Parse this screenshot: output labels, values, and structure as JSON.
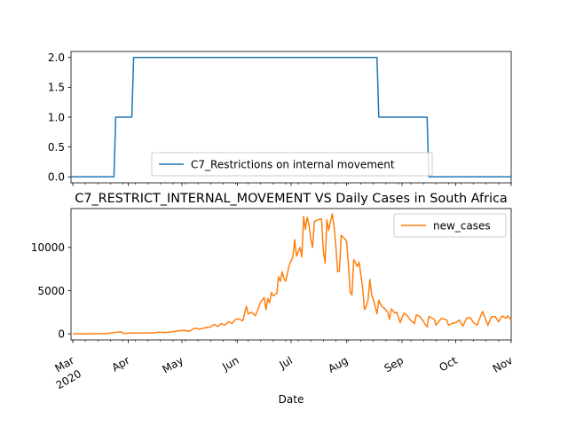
{
  "chart_data": [
    {
      "type": "line",
      "title": "",
      "xlabel": "",
      "ylabel": "",
      "ylim": [
        -0.1,
        2.1
      ],
      "yticks": [
        "0.0",
        "0.5",
        "1.0",
        "1.5",
        "2.0"
      ],
      "ytick_values": [
        0,
        0.5,
        1.0,
        1.5,
        2.0
      ],
      "grid": false,
      "legend_position": "lower-center",
      "series": [
        {
          "name": "C7_Restrictions on internal movement",
          "color": "#1f77b4",
          "points": [
            [
              "2020-02-29",
              0
            ],
            [
              "2020-03-24",
              0
            ],
            [
              "2020-03-25",
              1
            ],
            [
              "2020-04-03",
              1
            ],
            [
              "2020-04-04",
              2
            ],
            [
              "2020-08-18",
              2
            ],
            [
              "2020-08-19",
              1
            ],
            [
              "2020-09-15",
              1
            ],
            [
              "2020-09-16",
              0
            ],
            [
              "2020-11-01",
              0
            ]
          ]
        }
      ]
    },
    {
      "type": "line",
      "title": "C7_RESTRICT_INTERNAL_MOVEMENT VS Daily Cases in South Africa",
      "xlabel": "Date",
      "ylabel": "",
      "ylim": [
        -700,
        14500
      ],
      "yticks": [
        "0",
        "5000",
        "10000"
      ],
      "ytick_values": [
        0,
        5000,
        10000
      ],
      "xlim": [
        "2020-02-29",
        "2020-11-01"
      ],
      "xticks": [
        {
          "date": "2020-03-01",
          "label": "Mar",
          "sublabel": "2020"
        },
        {
          "date": "2020-04-01",
          "label": "Apr"
        },
        {
          "date": "2020-05-01",
          "label": "May"
        },
        {
          "date": "2020-06-01",
          "label": "Jun"
        },
        {
          "date": "2020-07-01",
          "label": "Jul"
        },
        {
          "date": "2020-08-01",
          "label": "Aug"
        },
        {
          "date": "2020-09-01",
          "label": "Sep"
        },
        {
          "date": "2020-10-01",
          "label": "Oct"
        },
        {
          "date": "2020-11-01",
          "label": "Nov"
        }
      ],
      "grid": false,
      "legend_position": "top-right",
      "series": [
        {
          "name": "new_cases",
          "color": "#ff7f0e",
          "points": [
            [
              "2020-03-01",
              0
            ],
            [
              "2020-03-05",
              1
            ],
            [
              "2020-03-10",
              3
            ],
            [
              "2020-03-15",
              20
            ],
            [
              "2020-03-20",
              50
            ],
            [
              "2020-03-24",
              150
            ],
            [
              "2020-03-26",
              200
            ],
            [
              "2020-03-28",
              240
            ],
            [
              "2020-03-29",
              60
            ],
            [
              "2020-04-01",
              80
            ],
            [
              "2020-04-05",
              100
            ],
            [
              "2020-04-10",
              90
            ],
            [
              "2020-04-15",
              120
            ],
            [
              "2020-04-18",
              200
            ],
            [
              "2020-04-22",
              150
            ],
            [
              "2020-04-26",
              250
            ],
            [
              "2020-04-29",
              350
            ],
            [
              "2020-05-02",
              400
            ],
            [
              "2020-05-05",
              300
            ],
            [
              "2020-05-08",
              650
            ],
            [
              "2020-05-11",
              550
            ],
            [
              "2020-05-14",
              700
            ],
            [
              "2020-05-17",
              800
            ],
            [
              "2020-05-19",
              1100
            ],
            [
              "2020-05-21",
              850
            ],
            [
              "2020-05-23",
              1200
            ],
            [
              "2020-05-25",
              1000
            ],
            [
              "2020-05-27",
              1400
            ],
            [
              "2020-05-29",
              1200
            ],
            [
              "2020-05-31",
              1700
            ],
            [
              "2020-06-02",
              1700
            ],
            [
              "2020-06-04",
              1500
            ],
            [
              "2020-06-06",
              3200
            ],
            [
              "2020-06-07",
              2300
            ],
            [
              "2020-06-09",
              2500
            ],
            [
              "2020-06-11",
              2100
            ],
            [
              "2020-06-12",
              2600
            ],
            [
              "2020-06-14",
              3700
            ],
            [
              "2020-06-16",
              4200
            ],
            [
              "2020-06-17",
              2800
            ],
            [
              "2020-06-18",
              4100
            ],
            [
              "2020-06-19",
              3600
            ],
            [
              "2020-06-20",
              4800
            ],
            [
              "2020-06-21",
              4400
            ],
            [
              "2020-06-23",
              4700
            ],
            [
              "2020-06-24",
              6600
            ],
            [
              "2020-06-25",
              6100
            ],
            [
              "2020-06-26",
              7200
            ],
            [
              "2020-06-27",
              6400
            ],
            [
              "2020-06-28",
              6100
            ],
            [
              "2020-06-30",
              8000
            ],
            [
              "2020-07-02",
              8900
            ],
            [
              "2020-07-03",
              10900
            ],
            [
              "2020-07-04",
              9000
            ],
            [
              "2020-07-06",
              10000
            ],
            [
              "2020-07-07",
              8900
            ],
            [
              "2020-07-08",
              13600
            ],
            [
              "2020-07-09",
              12100
            ],
            [
              "2020-07-10",
              13500
            ],
            [
              "2020-07-11",
              12600
            ],
            [
              "2020-07-12",
              11000
            ],
            [
              "2020-07-13",
              10000
            ],
            [
              "2020-07-14",
              13000
            ],
            [
              "2020-07-16",
              13200
            ],
            [
              "2020-07-18",
              13300
            ],
            [
              "2020-07-19",
              9600
            ],
            [
              "2020-07-20",
              8200
            ],
            [
              "2020-07-21",
              13200
            ],
            [
              "2020-07-22",
              12000
            ],
            [
              "2020-07-24",
              13900
            ],
            [
              "2020-07-25",
              12500
            ],
            [
              "2020-07-26",
              10200
            ],
            [
              "2020-07-27",
              7200
            ],
            [
              "2020-07-28",
              7300
            ],
            [
              "2020-07-29",
              11400
            ],
            [
              "2020-07-31",
              11000
            ],
            [
              "2020-08-01",
              10700
            ],
            [
              "2020-08-02",
              8200
            ],
            [
              "2020-08-03",
              4800
            ],
            [
              "2020-08-04",
              4500
            ],
            [
              "2020-08-05",
              8600
            ],
            [
              "2020-08-07",
              7800
            ],
            [
              "2020-08-08",
              8300
            ],
            [
              "2020-08-10",
              5300
            ],
            [
              "2020-08-11",
              2800
            ],
            [
              "2020-08-12",
              3200
            ],
            [
              "2020-08-13",
              3900
            ],
            [
              "2020-08-14",
              6300
            ],
            [
              "2020-08-15",
              4600
            ],
            [
              "2020-08-17",
              3200
            ],
            [
              "2020-08-18",
              2300
            ],
            [
              "2020-08-19",
              3900
            ],
            [
              "2020-08-20",
              3400
            ],
            [
              "2020-08-21",
              3100
            ],
            [
              "2020-08-22",
              3000
            ],
            [
              "2020-08-24",
              2500
            ],
            [
              "2020-08-25",
              1700
            ],
            [
              "2020-08-26",
              2900
            ],
            [
              "2020-08-28",
              2400
            ],
            [
              "2020-08-29",
              2500
            ],
            [
              "2020-08-31",
              1300
            ],
            [
              "2020-09-02",
              2400
            ],
            [
              "2020-09-04",
              2100
            ],
            [
              "2020-09-06",
              1500
            ],
            [
              "2020-09-08",
              1200
            ],
            [
              "2020-09-09",
              2200
            ],
            [
              "2020-09-11",
              2000
            ],
            [
              "2020-09-13",
              1400
            ],
            [
              "2020-09-15",
              800
            ],
            [
              "2020-09-16",
              2000
            ],
            [
              "2020-09-19",
              1700
            ],
            [
              "2020-09-20",
              1000
            ],
            [
              "2020-09-23",
              1800
            ],
            [
              "2020-09-26",
              1600
            ],
            [
              "2020-09-27",
              1000
            ],
            [
              "2020-09-29",
              1200
            ],
            [
              "2020-10-01",
              1300
            ],
            [
              "2020-10-03",
              1600
            ],
            [
              "2020-10-05",
              900
            ],
            [
              "2020-10-07",
              1800
            ],
            [
              "2020-10-09",
              1900
            ],
            [
              "2020-10-11",
              1300
            ],
            [
              "2020-10-13",
              1000
            ],
            [
              "2020-10-14",
              1600
            ],
            [
              "2020-10-16",
              2600
            ],
            [
              "2020-10-18",
              1500
            ],
            [
              "2020-10-19",
              1000
            ],
            [
              "2020-10-21",
              2000
            ],
            [
              "2020-10-23",
              2000
            ],
            [
              "2020-10-25",
              1400
            ],
            [
              "2020-10-27",
              2100
            ],
            [
              "2020-10-29",
              1800
            ],
            [
              "2020-10-30",
              2100
            ],
            [
              "2020-11-01",
              1600
            ]
          ]
        }
      ]
    }
  ]
}
